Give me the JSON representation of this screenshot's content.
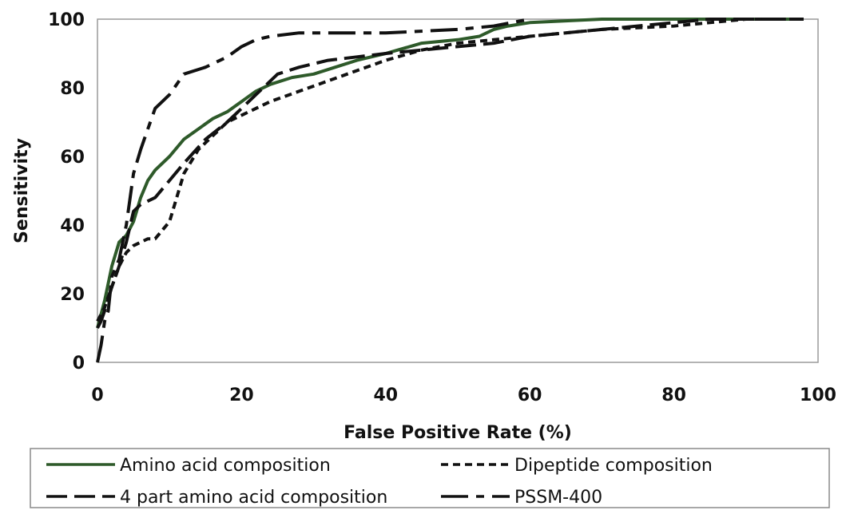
{
  "chart_data": {
    "type": "line",
    "title": "",
    "xlabel": "False Positive Rate (%)",
    "ylabel": "Sensitivity",
    "xlim": [
      0,
      100
    ],
    "ylim": [
      0,
      100
    ],
    "xticks": [
      0,
      20,
      40,
      60,
      80,
      100
    ],
    "yticks": [
      0,
      20,
      40,
      60,
      80,
      100
    ],
    "grid": false,
    "legend_position": "bottom",
    "series": [
      {
        "name": "Amino acid composition",
        "color": "#2e5a2a",
        "style": "solid",
        "x": [
          0,
          0.5,
          1,
          2,
          3,
          4,
          5,
          6,
          7,
          8,
          10,
          12,
          14,
          16,
          18,
          20,
          22,
          24,
          27,
          30,
          33,
          36,
          40,
          45,
          50,
          53,
          55,
          57,
          60,
          65,
          70,
          75,
          80,
          90,
          98
        ],
        "y": [
          10,
          14,
          18,
          28,
          35,
          37,
          41,
          48,
          53,
          56,
          60,
          65,
          68,
          71,
          73,
          76,
          79,
          81,
          83,
          84,
          86,
          88,
          90,
          93,
          94,
          95,
          97,
          98,
          99,
          99.5,
          100,
          100,
          100,
          100,
          100
        ]
      },
      {
        "name": "Dipeptide composition",
        "color": "#111111",
        "style": "dashed",
        "x": [
          0,
          1,
          2,
          3,
          4,
          5,
          6,
          7,
          8,
          10,
          12,
          14,
          16,
          18,
          20,
          24,
          28,
          32,
          36,
          40,
          45,
          50,
          55,
          60,
          70,
          80,
          90,
          98
        ],
        "y": [
          12,
          16,
          22,
          28,
          32,
          34,
          35,
          36,
          36,
          41,
          55,
          62,
          66,
          70,
          72,
          76,
          79,
          82,
          85,
          88,
          91,
          93,
          94,
          95,
          97,
          98,
          100,
          100
        ]
      },
      {
        "name": "4 part amino acid composition",
        "color": "#111111",
        "style": "longdash",
        "x": [
          0,
          0.5,
          1,
          2,
          3,
          4,
          5,
          6,
          7,
          8,
          10,
          12,
          15,
          18,
          20,
          22,
          25,
          28,
          32,
          36,
          40,
          45,
          50,
          55,
          60,
          70,
          80,
          85,
          90,
          98
        ],
        "y": [
          10,
          12,
          15,
          22,
          28,
          35,
          44,
          46,
          47,
          48,
          53,
          58,
          65,
          70,
          74,
          78,
          84,
          86,
          88,
          89,
          90,
          91,
          92,
          93,
          95,
          97,
          99,
          100,
          100,
          100
        ]
      },
      {
        "name": "PSSM-400",
        "color": "#111111",
        "style": "dashdot",
        "x": [
          0,
          0.5,
          1,
          1.5,
          2,
          3,
          4,
          5,
          6,
          7,
          8,
          10,
          12,
          15,
          18,
          20,
          22,
          24,
          28,
          35,
          40,
          50,
          55,
          60
        ],
        "y": [
          0,
          5,
          12,
          15,
          25,
          30,
          40,
          55,
          62,
          68,
          74,
          78,
          84,
          86,
          89,
          92,
          94,
          95,
          96,
          96,
          96,
          97,
          98,
          100
        ]
      }
    ]
  }
}
